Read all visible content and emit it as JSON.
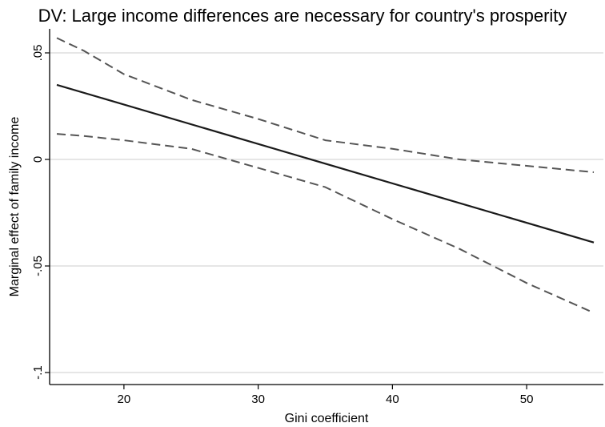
{
  "chart_data": {
    "type": "line",
    "title": "DV: Large income differences are necessary for country's prosperity",
    "xlabel": "Gini coefficient",
    "ylabel": "Marginal effect of family income",
    "xlim": [
      15,
      55
    ],
    "ylim": [
      -0.1,
      0.05
    ],
    "x_ticks": [
      20,
      30,
      40,
      50
    ],
    "x_tick_labels": [
      "20",
      "30",
      "40",
      "50"
    ],
    "y_ticks": [
      0.05,
      0,
      -0.05,
      -0.1
    ],
    "y_tick_labels": [
      ".05",
      "0",
      "-.05",
      "-.1"
    ],
    "grid": true,
    "legend": "none",
    "series": [
      {
        "style": "solid",
        "color": "#1a1a1a",
        "x": [
          15,
          55
        ],
        "values": [
          0.035,
          -0.039
        ]
      },
      {
        "style": "dashed",
        "color": "#555555",
        "x": [
          15,
          17,
          20,
          25,
          30,
          35,
          40,
          45,
          50,
          55
        ],
        "values": [
          0.057,
          0.051,
          0.04,
          0.028,
          0.019,
          0.009,
          0.005,
          0.0,
          -0.003,
          -0.006
        ]
      },
      {
        "style": "dashed",
        "color": "#555555",
        "x": [
          15,
          17,
          20,
          25,
          30,
          35,
          40,
          45,
          50,
          55
        ],
        "values": [
          0.012,
          0.011,
          0.009,
          0.005,
          -0.004,
          -0.013,
          -0.028,
          -0.042,
          -0.058,
          -0.072
        ]
      }
    ]
  }
}
